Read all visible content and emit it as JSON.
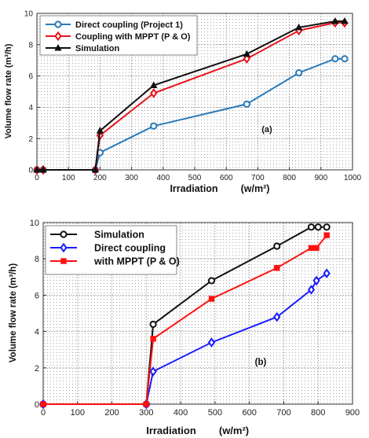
{
  "chart_data": [
    {
      "type": "line",
      "panel_label": "(a)",
      "xlabel": "Irradiation",
      "xunit": "(w/m²)",
      "ylabel": "Volume flow rate (m³/h)",
      "xlim": [
        0,
        1000
      ],
      "ylim": [
        0,
        10
      ],
      "xticks": [
        0,
        100,
        200,
        300,
        400,
        500,
        600,
        700,
        800,
        900,
        1000
      ],
      "yticks": [
        0,
        2,
        4,
        6,
        8,
        10
      ],
      "grid": true,
      "legend_position": "top-left",
      "series": [
        {
          "name": "Direct coupling (Project 1)",
          "color": "#2a7ab8",
          "marker": "circle",
          "x": [
            0,
            20,
            185,
            200,
            370,
            665,
            830,
            945,
            975
          ],
          "y": [
            0,
            0,
            0,
            1.1,
            2.8,
            4.2,
            6.2,
            7.1,
            7.1
          ]
        },
        {
          "name": "Coupling with MPPT (P & O)",
          "color": "#e8131b",
          "marker": "diamond",
          "x": [
            0,
            20,
            185,
            200,
            370,
            665,
            830,
            945,
            975
          ],
          "y": [
            0,
            0,
            0,
            2.2,
            4.9,
            7.1,
            8.9,
            9.4,
            9.4
          ]
        },
        {
          "name": "Simulation",
          "color": "#111111",
          "marker": "triangle",
          "x": [
            0,
            20,
            185,
            200,
            370,
            665,
            830,
            945,
            975
          ],
          "y": [
            0,
            0,
            0,
            2.5,
            5.4,
            7.4,
            9.1,
            9.5,
            9.5
          ]
        }
      ]
    },
    {
      "type": "line",
      "panel_label": "(b)",
      "xlabel": "Irradiation",
      "xunit": "(w/m²)",
      "ylabel": "Volume flow rate (m³/h)",
      "xlim": [
        0,
        900
      ],
      "ylim": [
        0,
        10
      ],
      "xticks": [
        0,
        100,
        200,
        300,
        400,
        500,
        600,
        700,
        800,
        900
      ],
      "yticks": [
        0,
        2,
        4,
        6,
        8,
        10
      ],
      "grid": true,
      "legend_position": "top-left",
      "series": [
        {
          "name": "Simulation",
          "color": "#111111",
          "marker": "circle",
          "x": [
            0,
            300,
            320,
            490,
            680,
            780,
            800,
            825
          ],
          "y": [
            0,
            0,
            4.4,
            6.8,
            8.7,
            9.75,
            9.75,
            9.75
          ]
        },
        {
          "name": "Direct coupling",
          "name2": "with MPPT (P & O)",
          "color": "#1a1aff",
          "marker": "diamond",
          "x": [
            0,
            300,
            320,
            490,
            680,
            780,
            795,
            825
          ],
          "y": [
            0,
            0,
            1.8,
            3.4,
            4.8,
            6.3,
            6.8,
            7.2
          ]
        },
        {
          "name": "with MPPT (P & O)",
          "color": "#ff1010",
          "marker": "square",
          "x": [
            0,
            300,
            320,
            490,
            680,
            780,
            795,
            825
          ],
          "y": [
            0,
            0,
            3.6,
            5.8,
            7.5,
            8.6,
            8.6,
            9.3
          ]
        }
      ]
    }
  ]
}
